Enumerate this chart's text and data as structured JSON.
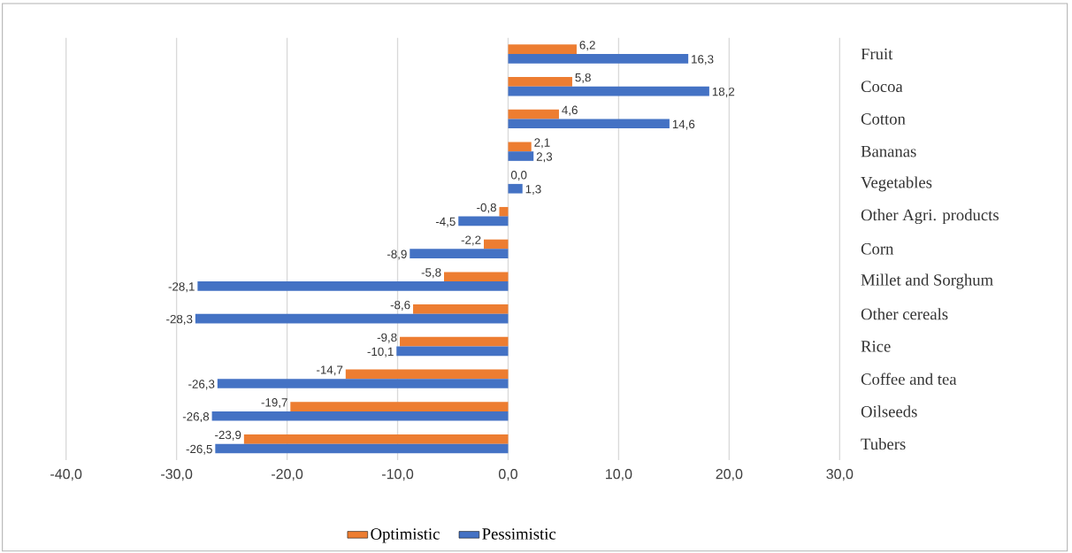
{
  "chart_data": {
    "type": "bar",
    "orientation": "horizontal",
    "categories": [
      "Fruit",
      "Cocoa",
      "Cotton",
      "Bananas",
      "Vegetables",
      "Other Agri. products",
      "Corn",
      "Millet and Sorghum",
      "Other cereals",
      "Rice",
      "Coffee and tea",
      "Oilseeds",
      "Tubers"
    ],
    "series": [
      {
        "name": "Optimistic",
        "color": "#ed7d31",
        "values": [
          6.2,
          5.8,
          4.6,
          2.1,
          0.0,
          -0.8,
          -2.2,
          -5.8,
          -8.6,
          -9.8,
          -14.7,
          -19.7,
          -23.9
        ],
        "value_labels": [
          "6,2",
          "5,8",
          "4,6",
          "2,1",
          "0,0",
          "-0,8",
          "-2,2",
          "-5,8",
          "-8,6",
          "-9,8",
          "-14,7",
          "-19,7",
          "-23,9"
        ]
      },
      {
        "name": "Pessimistic",
        "color": "#4472c4",
        "values": [
          16.3,
          18.2,
          14.6,
          2.3,
          1.3,
          -4.5,
          -8.9,
          -28.1,
          -28.3,
          -10.1,
          -26.3,
          -26.8,
          -26.5
        ],
        "value_labels": [
          "16,3",
          "18,2",
          "14,6",
          "2,3",
          "1,3",
          "-4,5",
          "-8,9",
          "-28,1",
          "-28,3",
          "-10,1",
          "-26,3",
          "-26,8",
          "-26,5"
        ]
      }
    ],
    "xlim": [
      -40,
      30
    ],
    "xticks": [
      {
        "value": -40,
        "label": "-40,0"
      },
      {
        "value": -30,
        "label": "-30,0"
      },
      {
        "value": -20,
        "label": "-20,0"
      },
      {
        "value": -10,
        "label": "-10,0"
      },
      {
        "value": 0,
        "label": "0,0"
      },
      {
        "value": 10,
        "label": "10,0"
      },
      {
        "value": 20,
        "label": "20,0"
      },
      {
        "value": 30,
        "label": "30,0"
      }
    ],
    "grid": "x",
    "legend": "bottom"
  }
}
